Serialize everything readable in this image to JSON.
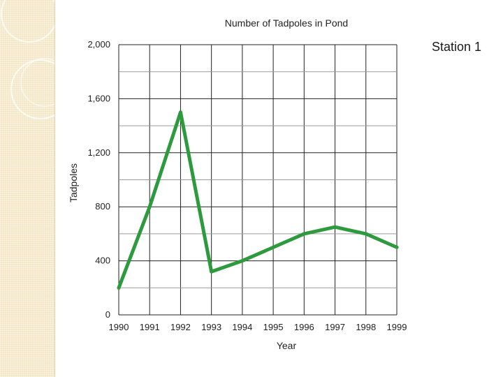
{
  "slide": {
    "label": "Station 1"
  },
  "colors": {
    "line": "#2e9a3e",
    "grid": "#222222",
    "panel": "#f3e6c4"
  },
  "chart_data": {
    "type": "line",
    "title": "Number of Tadpoles in Pond",
    "xlabel": "Year",
    "ylabel": "Tadpoles",
    "x": [
      1990,
      1991,
      1992,
      1993,
      1994,
      1995,
      1996,
      1997,
      1998,
      1999
    ],
    "x_tick_labels": [
      "1990",
      "1991",
      "1992",
      "1993",
      "1994",
      "1995",
      "1996",
      "1997",
      "1998",
      "1999"
    ],
    "y_tick_labels": [
      "0",
      "400",
      "800",
      "1,200",
      "1,600",
      "2,000"
    ],
    "y_ticks": [
      0,
      400,
      800,
      1200,
      1600,
      2000
    ],
    "ylim": [
      0,
      2000
    ],
    "grid": true,
    "series": [
      {
        "values": [
          200,
          800,
          1500,
          320,
          400,
          500,
          600,
          650,
          600,
          500
        ]
      }
    ]
  }
}
